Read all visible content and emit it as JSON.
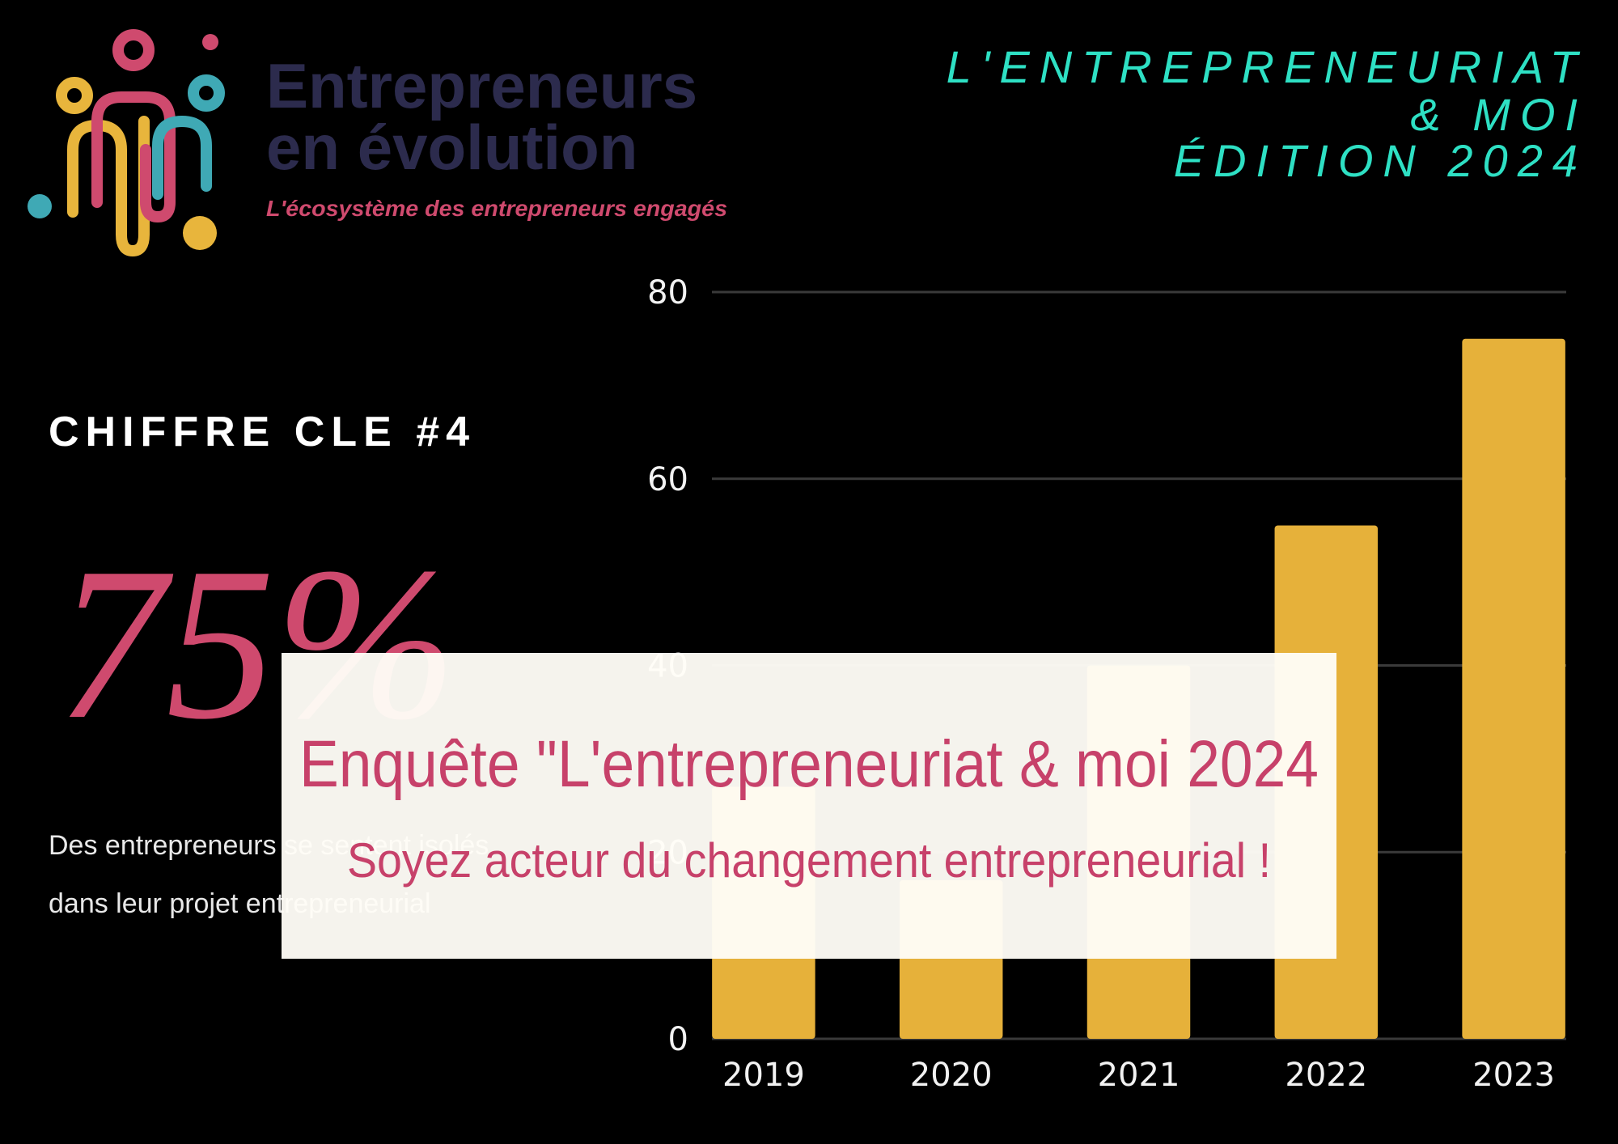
{
  "header": {
    "brand_line1": "Entrepreneurs",
    "brand_line2": "en évolution",
    "tagline": "L'écosystème des entrepreneurs engagés",
    "edition_lines": [
      "L'ENTREPRENEURIAT",
      "& MOI",
      "ÉDITION 2024"
    ]
  },
  "key_figure": {
    "label": "CHIFFRE CLE #4",
    "value": "75%",
    "description_lines": [
      "Des entrepreneurs se sentent isolés",
      "dans leur projet entrepreneurial"
    ]
  },
  "chart_data": {
    "type": "bar",
    "categories": [
      "2019",
      "2020",
      "2021",
      "2022",
      "2023"
    ],
    "values": [
      27,
      17,
      40,
      55,
      75
    ],
    "color": "#e6b13a",
    "ylim": [
      0,
      80
    ],
    "yticks": [
      0,
      20,
      40,
      60,
      80
    ],
    "grid": true
  },
  "overlay": {
    "title": "Enquête \"L'entrepreneuriat & moi 2024",
    "subtitle": "Soyez acteur du changement entrepreneurial !"
  }
}
